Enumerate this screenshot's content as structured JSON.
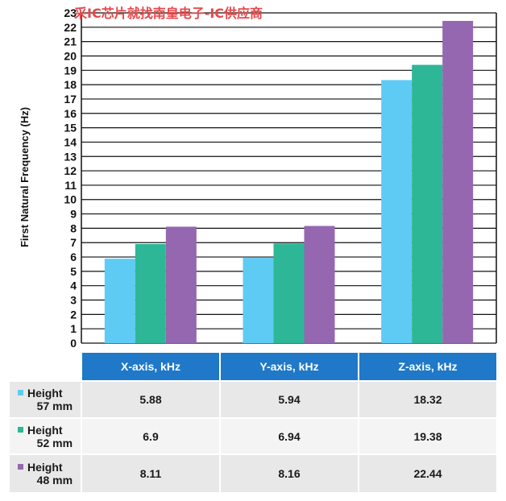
{
  "watermark": "采IC芯片就找南皇电子-IC供应商",
  "chart_data": {
    "type": "bar",
    "ylabel": "First Natural Frequency (Hz)",
    "ylim": [
      0,
      23
    ],
    "yticks": [
      0,
      1,
      2,
      3,
      4,
      5,
      6,
      7,
      8,
      9,
      10,
      11,
      12,
      13,
      14,
      15,
      16,
      17,
      18,
      19,
      20,
      21,
      22,
      23
    ],
    "grid": true,
    "categories": [
      "X-axis, kHz",
      "Y-axis, kHz",
      "Z-axis, kHz"
    ],
    "series": [
      {
        "name": "Height 57 mm",
        "color": "#5ecbf5",
        "values": [
          5.88,
          5.94,
          18.32
        ]
      },
      {
        "name": "Height 52 mm",
        "color": "#2db796",
        "values": [
          6.9,
          6.94,
          19.38
        ]
      },
      {
        "name": "Height 48 mm",
        "color": "#9567b0",
        "values": [
          8.11,
          8.16,
          22.44
        ]
      }
    ]
  },
  "table": {
    "headers": [
      "X-axis, kHz",
      "Y-axis, kHz",
      "Z-axis, kHz"
    ],
    "rows": [
      {
        "label_line1": "Height",
        "label_line2": "57 mm",
        "color": "#5ecbf5",
        "cells": [
          "5.88",
          "5.94",
          "18.32"
        ]
      },
      {
        "label_line1": "Height",
        "label_line2": "52 mm",
        "color": "#2db796",
        "cells": [
          "6.9",
          "6.94",
          "19.38"
        ]
      },
      {
        "label_line1": "Height",
        "label_line2": "48 mm",
        "color": "#9567b0",
        "cells": [
          "8.11",
          "8.16",
          "22.44"
        ]
      }
    ]
  }
}
